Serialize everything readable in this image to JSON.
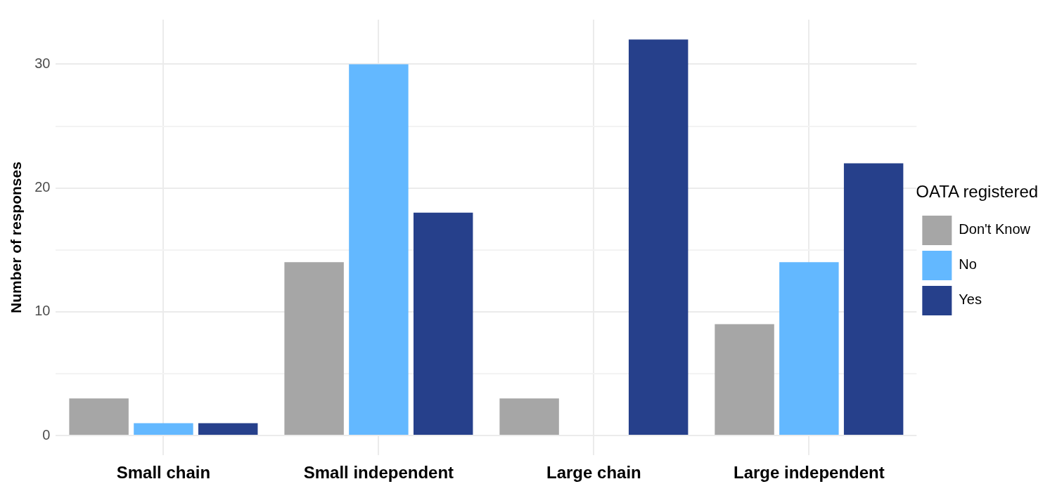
{
  "chart_data": {
    "type": "bar",
    "ylabel": "Number of responses",
    "legend_title": "OATA registered",
    "legend": "right",
    "categories": [
      "Small chain",
      "Small independent",
      "Large chain",
      "Large independent"
    ],
    "series": [
      {
        "name": "Don't Know",
        "color": "#a6a6a6",
        "values": [
          3,
          14,
          3,
          9
        ]
      },
      {
        "name": "No",
        "color": "#63b8ff",
        "values": [
          1,
          30,
          null,
          14
        ]
      },
      {
        "name": "Yes",
        "color": "#26408b",
        "values": [
          1,
          18,
          32,
          22
        ]
      }
    ],
    "ylim": [
      -1.6,
      33.6
    ],
    "yticks": [
      0,
      {
        "value": 5,
        "label": null
      },
      10,
      {
        "value": 15,
        "label": null
      },
      20,
      {
        "value": 25,
        "label": null
      },
      30
    ],
    "grid": true
  }
}
